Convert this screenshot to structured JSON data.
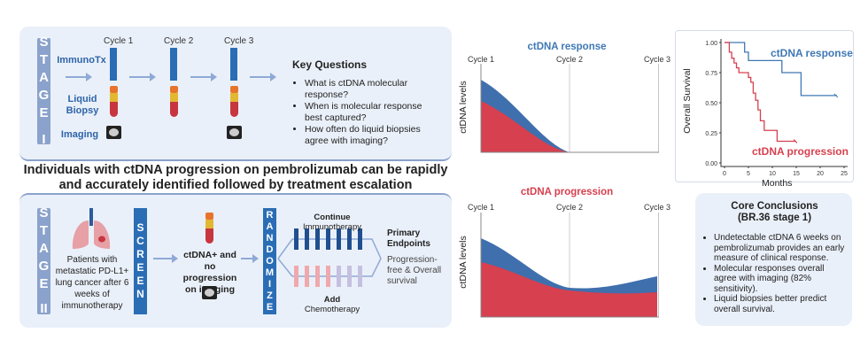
{
  "stage1": {
    "stage_label": [
      "S",
      "T",
      "A",
      "G",
      "E",
      "I"
    ],
    "cycles": [
      "Cycle 1",
      "Cycle 2",
      "Cycle 3"
    ],
    "row_labels": {
      "immuno": "ImmunoTx",
      "biopsy": "Liquid Biopsy",
      "imaging": "Imaging"
    },
    "key_questions": {
      "title": "Key Questions",
      "items": [
        "What is ctDNA molecular response?",
        "When is molecular response best captured?",
        "How often do liquid biopsies agree with imaging?"
      ]
    }
  },
  "headline": [
    "Individuals with ctDNA progression on pembrolizumab can be rapidly",
    "and accurately identified followed by treatment escalation"
  ],
  "stage2": {
    "stage_label": [
      "S",
      "T",
      "A",
      "G",
      "E",
      "II"
    ],
    "patients": "Patients with metastatic PD-L1+ lung cancer after 6 weeks of immunotherapy",
    "screen_label": [
      "S",
      "C",
      "R",
      "E",
      "E",
      "N"
    ],
    "screen_result": "ctDNA+ and no progression on imaging",
    "randomize_label": [
      "R",
      "A",
      "N",
      "D",
      "O",
      "M",
      "I",
      "Z",
      "E"
    ],
    "arm1": {
      "bold": "Continue",
      "text": "Immunotherapy"
    },
    "arm2": {
      "bold": "Add",
      "text": "Chemotherapy"
    },
    "endpoints": {
      "title": "Primary Endpoints",
      "text": "Progression-free & Overall survival"
    }
  },
  "response_plot": {
    "title": "ctDNA response",
    "ylabel": "ctDNA levels",
    "cycles": [
      "Cycle 1",
      "Cycle 2",
      "Cycle 3"
    ]
  },
  "progression_plot": {
    "title": "ctDNA progression",
    "ylabel": "ctDNA levels",
    "cycles": [
      "Cycle 1",
      "Cycle 2",
      "Cycle 3"
    ]
  },
  "colors": {
    "blue": "#3f78b5",
    "red": "#d6404f",
    "panel": "#eaf0f9"
  },
  "chart_data": {
    "type": "line",
    "xlabel": "Months",
    "ylabel": "Overall Survival",
    "xlim": [
      0,
      25
    ],
    "ylim": [
      0,
      1
    ],
    "xticks": [
      "0",
      "5",
      "10",
      "15",
      "20",
      "25"
    ],
    "yticks": [
      "0.00",
      "0.25",
      "0.50",
      "0.75",
      "1.00"
    ],
    "series": [
      {
        "name": "ctDNA response",
        "color": "#3f78b5",
        "x": [
          0,
          4.2,
          5,
          12,
          16,
          23.5
        ],
        "y": [
          1,
          0.92,
          0.85,
          0.75,
          0.56,
          0.56
        ]
      },
      {
        "name": "ctDNA progression",
        "color": "#d6404f",
        "x": [
          0,
          1,
          1.5,
          2,
          2.5,
          3,
          5,
          5.5,
          6,
          6.5,
          7,
          7.5,
          8.3,
          11,
          15
        ],
        "y": [
          1,
          0.92,
          0.87,
          0.83,
          0.79,
          0.75,
          0.71,
          0.67,
          0.58,
          0.52,
          0.44,
          0.35,
          0.27,
          0.18,
          0.18
        ]
      }
    ]
  },
  "conclusions": {
    "title": "Core Conclusions",
    "subtitle": "(BR.36 stage 1)",
    "items": [
      "Undetectable ctDNA 6 weeks on pembrolizumab provides an early measure of clinical response.",
      "Molecular responses overall agree with imaging (82% sensitivity).",
      "Liquid biopsies better predict overall survival."
    ]
  }
}
